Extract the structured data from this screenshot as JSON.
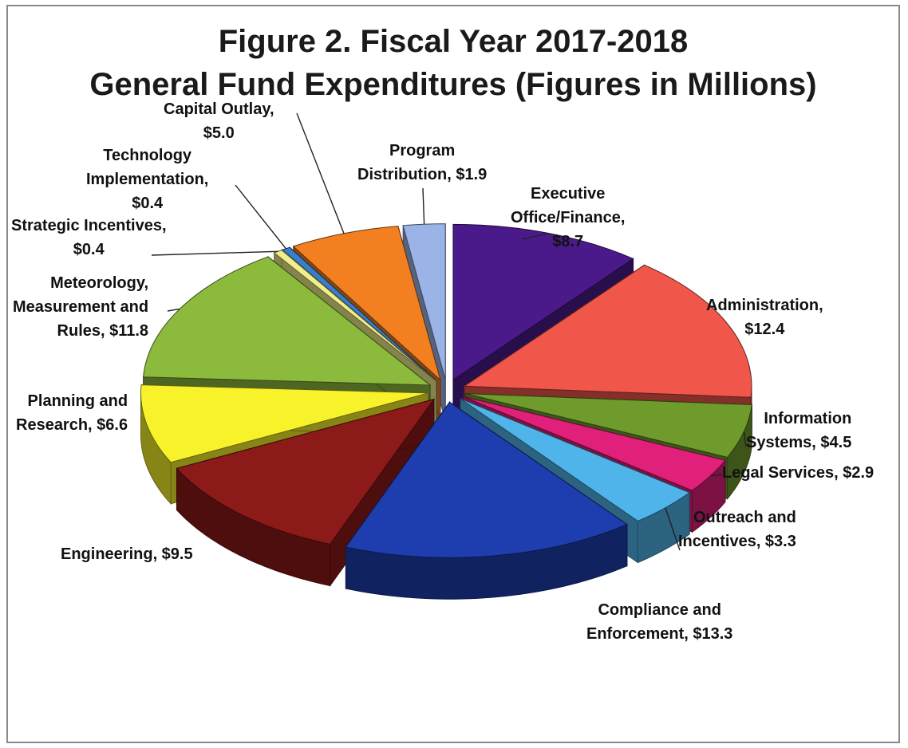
{
  "chart_data": {
    "type": "pie",
    "title": "Figure 2. Fiscal Year 2017-2018",
    "subtitle": "General Fund Expenditures (Figures in Millions)",
    "slices": [
      {
        "label": "Executive Office/Finance",
        "value": 8.7,
        "value_label": "$8.7",
        "color": "#4b1a8a"
      },
      {
        "label": "Administration",
        "value": 12.4,
        "value_label": "$12.4",
        "color": "#f0564a"
      },
      {
        "label": "Information Systems",
        "value": 4.5,
        "value_label": "$4.5",
        "color": "#6e9b2c"
      },
      {
        "label": "Legal Services",
        "value": 2.9,
        "value_label": "$2.9",
        "color": "#e0207a"
      },
      {
        "label": "Outreach and Incentives",
        "value": 3.3,
        "value_label": "$3.3",
        "color": "#4fb4ea"
      },
      {
        "label": "Compliance and Enforcement",
        "value": 13.3,
        "value_label": "$13.3",
        "color": "#1e3eb0"
      },
      {
        "label": "Engineering",
        "value": 9.5,
        "value_label": "$9.5",
        "color": "#8c1a18"
      },
      {
        "label": "Planning and Research",
        "value": 6.6,
        "value_label": "$6.6",
        "color": "#f8f22a"
      },
      {
        "label": "Meteorology, Measurement and Rules",
        "value": 11.8,
        "value_label": "$11.8",
        "color": "#8cba3c"
      },
      {
        "label": "Strategic Incentives",
        "value": 0.4,
        "value_label": "$0.4",
        "color": "#f2ee8a"
      },
      {
        "label": "Technology Implementation",
        "value": 0.4,
        "value_label": "$0.4",
        "color": "#3a7ec8"
      },
      {
        "label": "Capital Outlay",
        "value": 5.0,
        "value_label": "$5.0",
        "color": "#f38020"
      },
      {
        "label": "Program Distribution",
        "value": 1.9,
        "value_label": "$1.9",
        "color": "#9ab4e8"
      }
    ]
  },
  "labels": {
    "executive": [
      "Executive",
      "Office/Finance,",
      "$8.7"
    ],
    "administration": [
      "Administration,",
      "$12.4"
    ],
    "information": [
      "Information",
      "Systems, $4.5"
    ],
    "legal": [
      "Legal Services, $2.9"
    ],
    "outreach": [
      "Outreach and",
      "Incentives, $3.3"
    ],
    "compliance": [
      "Compliance and",
      "Enforcement, $13.3"
    ],
    "engineering": [
      "Engineering, $9.5"
    ],
    "planning": [
      "Planning and",
      "Research, $6.6"
    ],
    "meteorology": [
      "Meteorology,",
      "Measurement and",
      "Rules, $11.8"
    ],
    "strategic": [
      "Strategic Incentives,",
      "$0.4"
    ],
    "technology": [
      "Technology",
      "Implementation,",
      "$0.4"
    ],
    "capital": [
      "Capital Outlay,",
      "$5.0"
    ],
    "program": [
      "Program",
      "Distribution, $1.9"
    ]
  }
}
